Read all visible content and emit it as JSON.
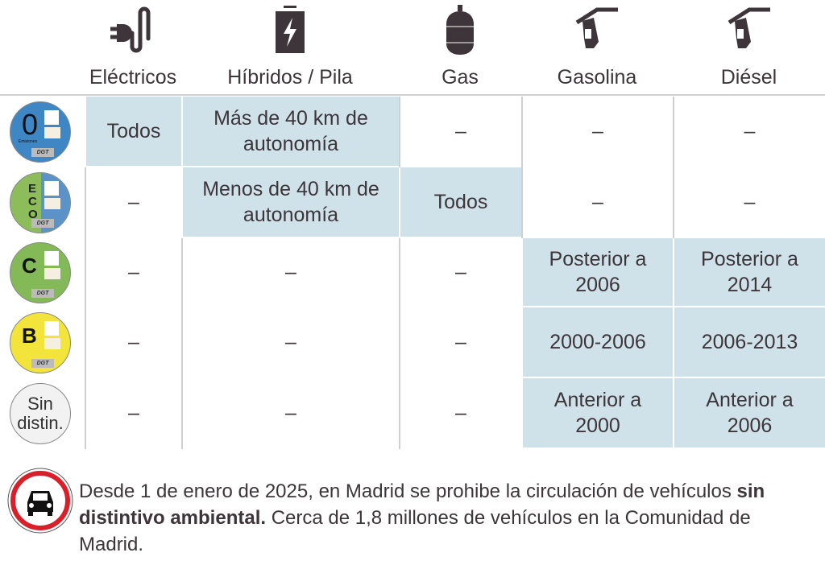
{
  "columns": [
    {
      "label": "Eléctricos",
      "icon": "plug-icon"
    },
    {
      "label": "Híbridos / Pila",
      "icon": "battery-icon"
    },
    {
      "label": "Gas",
      "icon": "gas-tank-icon"
    },
    {
      "label": "Gasolina",
      "icon": "fuel-pump-icon"
    },
    {
      "label": "Diésel",
      "icon": "fuel-pump-icon"
    }
  ],
  "rows": [
    {
      "badge": {
        "label": "0",
        "sub": "Emisiones",
        "brand": "DGT",
        "color": "#3f86c4"
      },
      "cells": [
        {
          "text": "Todos",
          "on": true
        },
        {
          "text": "Más de 40 km de autonomía",
          "on": true
        },
        {
          "text": "–",
          "on": false
        },
        {
          "text": "–",
          "on": false
        },
        {
          "text": "–",
          "on": false
        }
      ]
    },
    {
      "badge": {
        "label": "ECO",
        "brand": "DGT",
        "color": "#8cbd5a",
        "color2": "#5b93c9"
      },
      "cells": [
        {
          "text": "–",
          "on": false
        },
        {
          "text": "Menos de 40 km de autonomía",
          "on": true
        },
        {
          "text": "Todos",
          "on": true
        },
        {
          "text": "–",
          "on": false
        },
        {
          "text": "–",
          "on": false
        }
      ]
    },
    {
      "badge": {
        "label": "C",
        "brand": "DGT",
        "color": "#84b957"
      },
      "cells": [
        {
          "text": "–",
          "on": false
        },
        {
          "text": "–",
          "on": false
        },
        {
          "text": "–",
          "on": false
        },
        {
          "text": "Posterior a 2006",
          "on": true
        },
        {
          "text": "Posterior a 2014",
          "on": true
        }
      ]
    },
    {
      "badge": {
        "label": "B",
        "brand": "DGT",
        "color": "#f2e43a"
      },
      "cells": [
        {
          "text": "–",
          "on": false
        },
        {
          "text": "–",
          "on": false
        },
        {
          "text": "–",
          "on": false
        },
        {
          "text": "2000-2006",
          "on": true
        },
        {
          "text": "2006-2013",
          "on": true
        }
      ]
    },
    {
      "badge": {
        "label": "Sin distin.",
        "color": "#f2f2f2"
      },
      "cells": [
        {
          "text": "–",
          "on": false
        },
        {
          "text": "–",
          "on": false
        },
        {
          "text": "–",
          "on": false
        },
        {
          "text": "Anterior a 2000",
          "on": true
        },
        {
          "text": "Anterior a 2006",
          "on": true
        }
      ]
    }
  ],
  "note": {
    "icon": "no-cars-sign-icon",
    "part1": "Desde 1 de enero de 2025, en Madrid se prohibe la circulación de vehículos ",
    "bold": "sin distintivo ambiental.",
    "part2": " Cerca de 1,8 millones de vehículos en la Comunidad de Madrid."
  },
  "colors": {
    "highlight": "#cfe2ea",
    "text": "#3d3539",
    "sign_red": "#d9202a"
  }
}
